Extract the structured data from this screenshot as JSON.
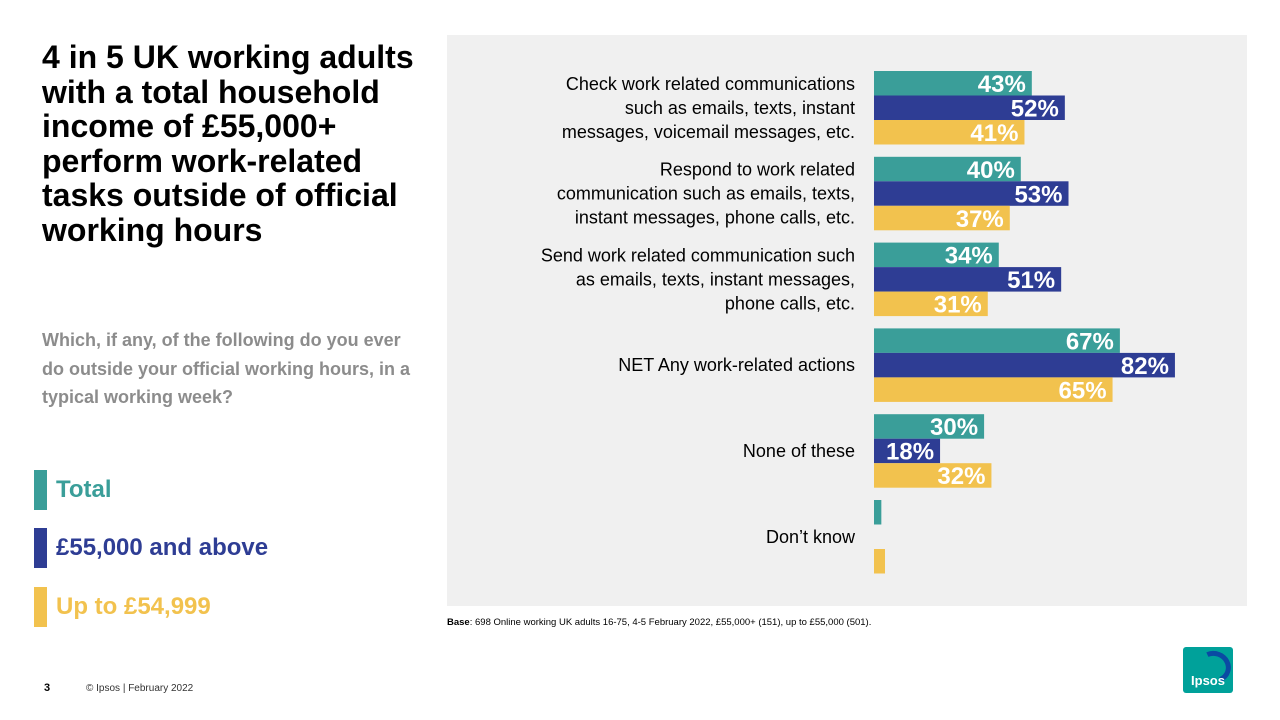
{
  "headline": "4 in 5 UK working adults with a total household income of £55,000+ perform work-related tasks outside of official working hours",
  "question": "Which, if any, of the following  do you ever do outside your official working hours, in a typical working week?",
  "legend": [
    {
      "label": "Total",
      "color": "#3a9e99"
    },
    {
      "label": "£55,000 and above",
      "color": "#2e3d94"
    },
    {
      "label": "Up to £54,999",
      "color": "#f2c24e"
    }
  ],
  "base_note": {
    "label": "Base",
    "text": ": 698 Online working UK adults 16-75, 4-5 February 2022, £55,000+ (151), up to £55,000 (501)."
  },
  "footer": {
    "page_number": "3",
    "copyright": "© Ipsos | February 2022"
  },
  "logo": {
    "text": "Ipsos",
    "color": "#00a19a"
  },
  "chart_data": {
    "type": "bar",
    "orientation": "horizontal",
    "categories": [
      [
        "Check work related communications",
        "such as emails, texts, instant",
        "messages, voicemail messages, etc."
      ],
      [
        "Respond to work related",
        "communication such as emails, texts,",
        "instant messages, phone calls, etc."
      ],
      [
        "Send work related communication such",
        "as emails, texts, instant messages,",
        "phone calls, etc."
      ],
      [
        "NET Any work-related actions"
      ],
      [
        "None of these"
      ],
      [
        "Don’t know"
      ]
    ],
    "series": [
      {
        "name": "Total",
        "color": "#3a9e99",
        "values": [
          43,
          40,
          34,
          67,
          30,
          2
        ],
        "labels": [
          "43%",
          "40%",
          "34%",
          "67%",
          "30%",
          ""
        ]
      },
      {
        "name": "£55,000 and above",
        "color": "#2e3d94",
        "values": [
          52,
          53,
          51,
          82,
          18,
          0
        ],
        "labels": [
          "52%",
          "53%",
          "51%",
          "82%",
          "18%",
          ""
        ]
      },
      {
        "name": "Up to £54,999",
        "color": "#f2c24e",
        "values": [
          41,
          37,
          31,
          65,
          32,
          3
        ],
        "labels": [
          "41%",
          "37%",
          "31%",
          "65%",
          "32%",
          ""
        ]
      }
    ],
    "xlim": [
      0,
      100
    ],
    "grid": false,
    "legend_position": "left"
  }
}
